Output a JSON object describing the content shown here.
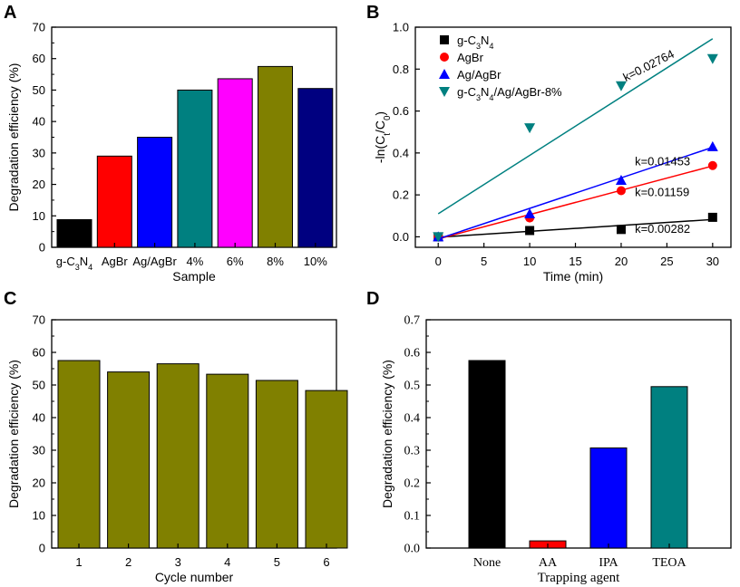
{
  "chart_data": [
    {
      "panel": "A",
      "type": "bar",
      "categories": [
        "g-C3N4",
        "AgBr",
        "Ag/AgBr",
        "4%",
        "6%",
        "8%",
        "10%"
      ],
      "values": [
        8.8,
        29,
        35,
        50,
        53.6,
        57.5,
        50.5
      ],
      "colors": [
        "#000000",
        "#ff0000",
        "#0000ff",
        "#008080",
        "#ff00ff",
        "#808000",
        "#000080"
      ],
      "xlabel": "Sample",
      "ylabel": "Degradation efficiency (%)",
      "ylim": [
        0,
        70
      ],
      "yticks": [
        "0",
        "10",
        "20",
        "30",
        "40",
        "50",
        "60",
        "70"
      ]
    },
    {
      "panel": "B",
      "type": "scatter",
      "xlabel": "Time (min)",
      "ylabel": "-ln(Ct/C0)",
      "xlim": [
        -2.5,
        32
      ],
      "ylim": [
        -0.05,
        1.0
      ],
      "xticks": [
        "0",
        "5",
        "10",
        "15",
        "20",
        "25",
        "30"
      ],
      "yticks": [
        "0.0",
        "0.2",
        "0.4",
        "0.6",
        "0.8",
        "1.0"
      ],
      "series": [
        {
          "name": "g-C3N4",
          "marker": "square",
          "color": "#000000",
          "x": [
            0,
            10,
            20,
            30
          ],
          "y": [
            0.0,
            0.03,
            0.035,
            0.093
          ],
          "fit": [
            -0.002,
            0.0826
          ],
          "k": "k=0.00282"
        },
        {
          "name": "AgBr",
          "marker": "circle",
          "color": "#ff0000",
          "x": [
            0,
            10,
            20,
            30
          ],
          "y": [
            0.0,
            0.09,
            0.22,
            0.34
          ],
          "fit": [
            -0.01,
            0.338
          ],
          "k": "k=0.01159"
        },
        {
          "name": "Ag/AgBr",
          "marker": "triangle-up",
          "color": "#0000ff",
          "x": [
            0,
            10,
            20,
            30
          ],
          "y": [
            0.0,
            0.11,
            0.27,
            0.43
          ],
          "fit": [
            -0.01,
            0.427
          ],
          "k": "k=0.01453"
        },
        {
          "name": "g-C3N4/Ag/AgBr-8%",
          "marker": "triangle-down",
          "color": "#008080",
          "x": [
            0,
            10,
            20,
            30
          ],
          "y": [
            0.0,
            0.52,
            0.72,
            0.85
          ],
          "fit": [
            0.11,
            0.945
          ],
          "k": "k=0.02764"
        }
      ]
    },
    {
      "panel": "C",
      "type": "bar",
      "categories": [
        "1",
        "2",
        "3",
        "4",
        "5",
        "6"
      ],
      "values": [
        57.5,
        54,
        56.5,
        53.3,
        51.4,
        48.3
      ],
      "color": "#808000",
      "xlabel": "Cycle number",
      "ylabel": "Degradation efficiency (%)",
      "ylim": [
        0,
        70
      ],
      "yticks": [
        "0",
        "10",
        "20",
        "30",
        "40",
        "50",
        "60",
        "70"
      ]
    },
    {
      "panel": "D",
      "type": "bar",
      "categories": [
        "None",
        "AA",
        "IPA",
        "TEOA"
      ],
      "values": [
        0.575,
        0.022,
        0.307,
        0.495
      ],
      "colors": [
        "#000000",
        "#ff0000",
        "#0000ff",
        "#008080"
      ],
      "xlabel": "Trapping agent",
      "ylabel": "Degradation efficiency (%)",
      "ylim": [
        0,
        0.7
      ],
      "yticks": [
        "0.0",
        "0.1",
        "0.2",
        "0.3",
        "0.4",
        "0.5",
        "0.6",
        "0.7"
      ]
    }
  ]
}
